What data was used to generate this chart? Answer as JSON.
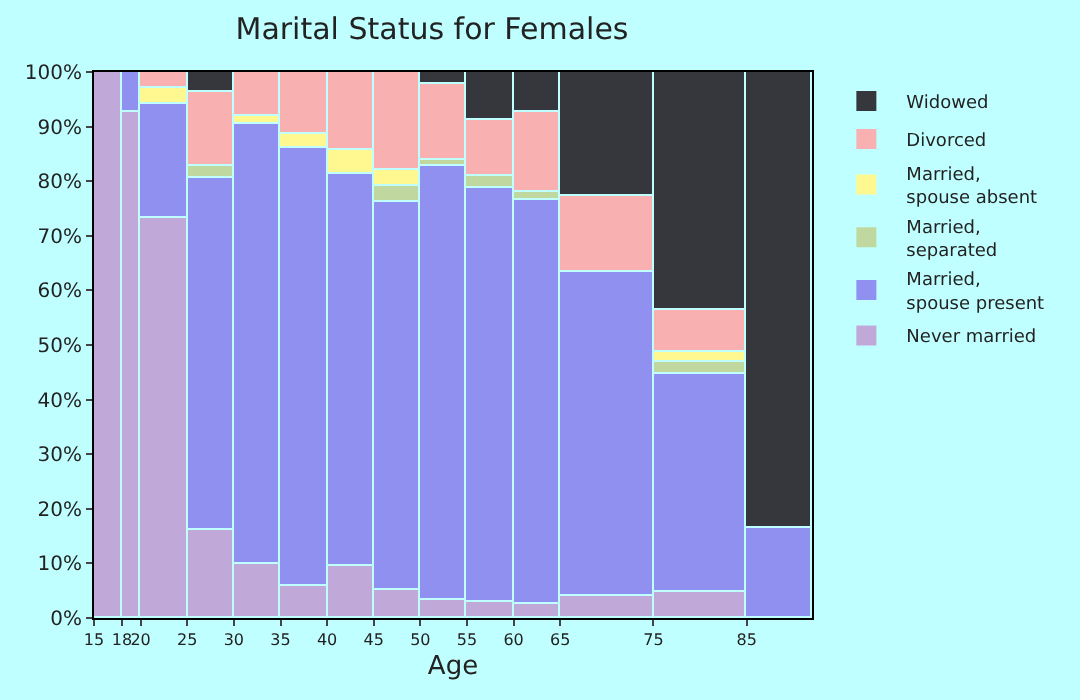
{
  "chart_data": {
    "type": "bar",
    "title": "Marital Status for Females",
    "xlabel": "Age",
    "stacked": true,
    "x": [
      16.5,
      19,
      22.5,
      27.5,
      32.5,
      37.5,
      42.5,
      47.5,
      52.5,
      57.5,
      62.5,
      70,
      80,
      88.5
    ],
    "series": [
      {
        "name": "Never married",
        "color": "#c0a8d8",
        "values": [
          100,
          92.5,
          73.3,
          16.1,
          9.9,
          5.9,
          9.5,
          5.1,
          3.3,
          2.9,
          2.6,
          4.0,
          4.8,
          0
        ]
      },
      {
        "name": "Married, spouse present",
        "color": "#9090f0",
        "values": [
          0,
          7.5,
          21.0,
          64.6,
          80.7,
          80.3,
          71.9,
          71.2,
          79.6,
          76.0,
          74.1,
          59.4,
          39.9,
          16.5
        ]
      },
      {
        "name": "Married, separated",
        "color": "#c0d8a0",
        "values": [
          0,
          0,
          0,
          2.2,
          0,
          0,
          0,
          2.9,
          1.1,
          2.0,
          1.3,
          0,
          2.1,
          0
        ]
      },
      {
        "name": "Married, spouse absent",
        "color": "#fff890",
        "values": [
          0,
          0,
          2.9,
          0,
          1.2,
          2.6,
          4.4,
          3.0,
          0,
          0,
          0,
          0,
          2.0,
          0
        ]
      },
      {
        "name": "Divorced",
        "color": "#f8b0b0",
        "values": [
          0,
          0,
          2.8,
          13.6,
          8.2,
          11.2,
          14.2,
          17.8,
          13.9,
          10.4,
          14.8,
          14.0,
          7.7,
          0
        ]
      },
      {
        "name": "Widowed",
        "color": "#36373d",
        "values": [
          0,
          0,
          0,
          3.5,
          0,
          0,
          0,
          0,
          2.1,
          8.7,
          7.2,
          22.6,
          43.5,
          83.5
        ]
      }
    ],
    "xlim": [
      15,
      92
    ],
    "xticks": [
      15,
      18,
      20,
      25,
      30,
      35,
      40,
      45,
      50,
      55,
      60,
      65,
      75,
      85
    ],
    "ylim": [
      0,
      100
    ],
    "yticks": [
      {
        "value": 0,
        "label": "0%"
      },
      {
        "value": 10,
        "label": "10%"
      },
      {
        "value": 20,
        "label": "20%"
      },
      {
        "value": 30,
        "label": "30%"
      },
      {
        "value": 40,
        "label": "40%"
      },
      {
        "value": 50,
        "label": "50%"
      },
      {
        "value": 60,
        "label": "60%"
      },
      {
        "value": 70,
        "label": "70%"
      },
      {
        "value": 80,
        "label": "80%"
      },
      {
        "value": 90,
        "label": "90%"
      },
      {
        "value": 100,
        "label": "100%"
      }
    ],
    "legend": "right"
  }
}
